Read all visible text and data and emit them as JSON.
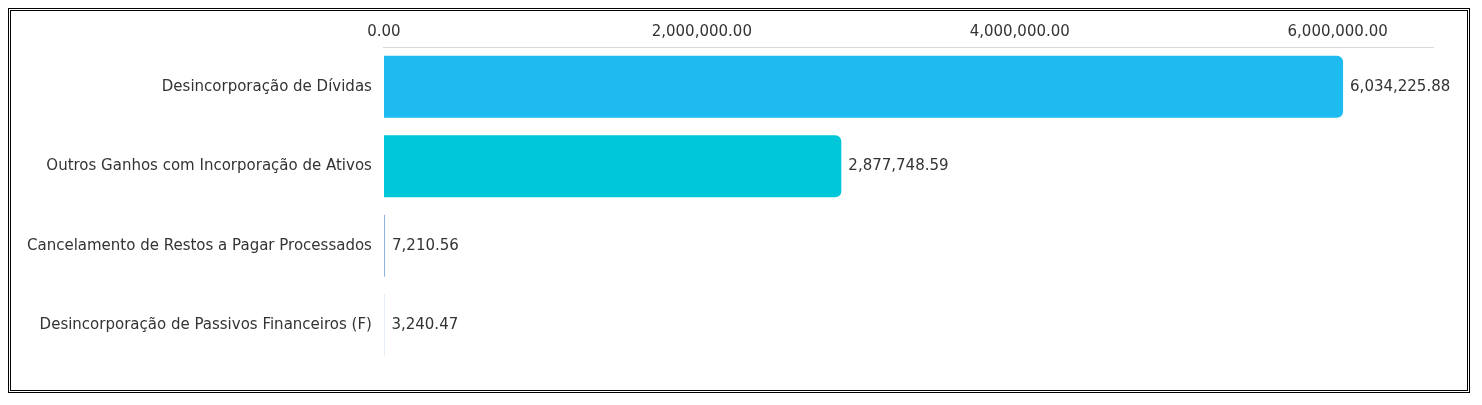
{
  "chart_data": {
    "type": "bar",
    "orientation": "horizontal",
    "categories": [
      "Desincorporação de Dívidas",
      "Outros Ganhos com Incorporação de Ativos",
      "Cancelamento de Restos a Pagar Processados",
      "Desincorporação de Passivos Financeiros (F)"
    ],
    "values": [
      6034225.88,
      2877748.59,
      7210.56,
      3240.47
    ],
    "colors": [
      "#1ebbf0",
      "#00c8d9",
      "#8fb4e0",
      "#c8d4ea"
    ],
    "xlim": [
      0,
      6600000
    ],
    "value_labels": [
      "6,034,225.88",
      "2,877,748.59",
      "7,210.56",
      "3,240.47"
    ],
    "xticks": [
      {
        "value": 0,
        "label": "0.00"
      },
      {
        "value": 2000000,
        "label": "2,000,000.00"
      },
      {
        "value": 4000000,
        "label": "4,000,000.00"
      },
      {
        "value": 6000000,
        "label": "6,000,000.00"
      }
    ],
    "grid": false,
    "legend": false
  }
}
